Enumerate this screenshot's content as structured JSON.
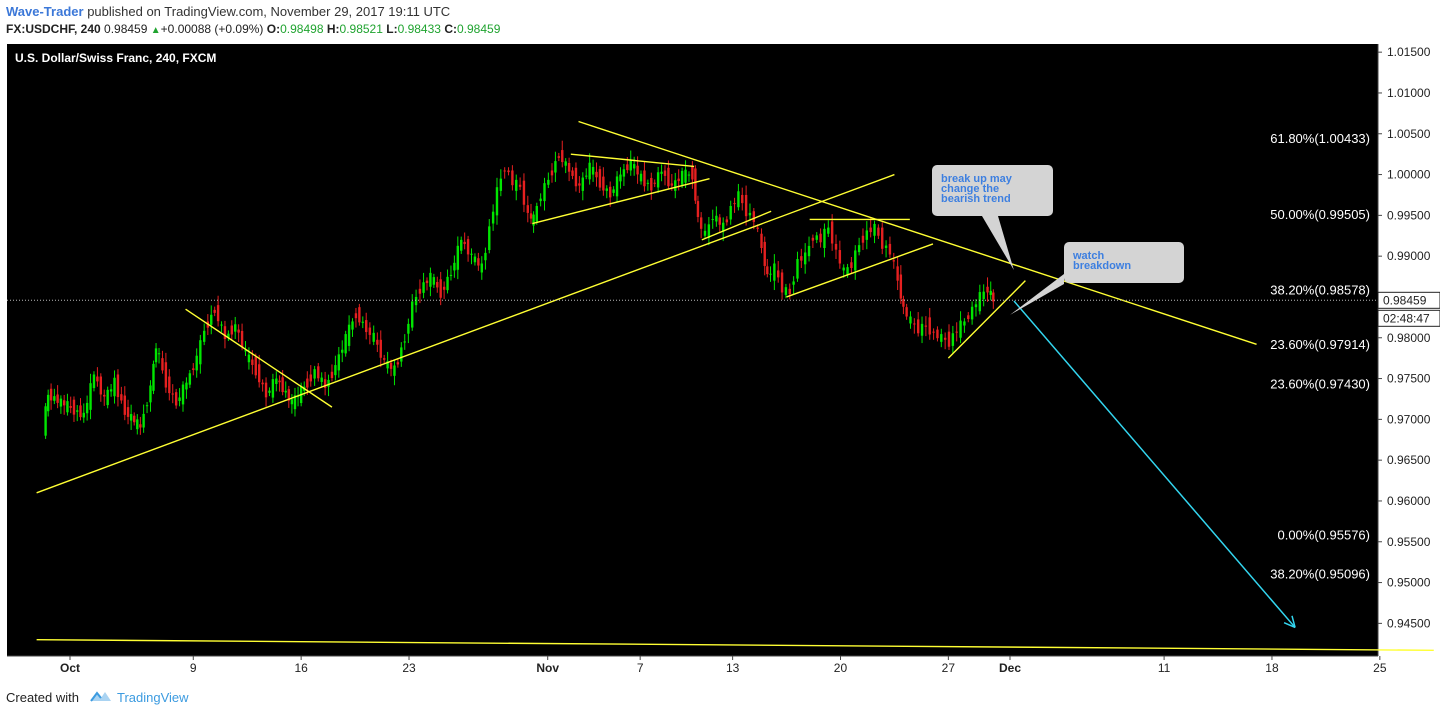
{
  "header": {
    "author": "Wave-Trader",
    "published_text": "published on TradingView.com, November 29, 2017 19:11 UTC",
    "symbol": "FX:USDCHF, 240",
    "last": "0.98459",
    "change": "+0.00088 (+0.09%)",
    "o_label": "O:",
    "o_value": "0.98498",
    "h_label": "H:",
    "h_value": "0.98521",
    "l_label": "L:",
    "l_value": "0.98433",
    "c_label": "C:",
    "c_value": "0.98459"
  },
  "footer": {
    "created_with": "Created with",
    "brand": "TradingView"
  },
  "colors": {
    "background": "#000000",
    "up": "#00e600",
    "down": "#e62020",
    "trendline": "#ffff33",
    "arrow": "#33d6f0",
    "callout": "#d4d4d4",
    "callout_text": "#3d7fe0"
  },
  "chart_data": {
    "type": "candlestick",
    "title": "U.S. Dollar/Swiss Franc, 240, FXCM",
    "ylim": [
      0.941,
      1.016
    ],
    "y_ticks": [
      "1.01500",
      "1.01000",
      "1.00500",
      "1.00000",
      "0.99500",
      "0.99000",
      "0.98500",
      "0.98000",
      "0.97500",
      "0.97000",
      "0.96500",
      "0.96000",
      "0.95500",
      "0.95000",
      "0.94500"
    ],
    "x_ticks": [
      "Oct",
      "9",
      "16",
      "23",
      "Nov",
      "7",
      "13",
      "20",
      "27",
      "Dec",
      "11",
      "18",
      "25"
    ],
    "x_tick_dates": [
      "2017-10-01",
      "2017-10-09",
      "2017-10-16",
      "2017-10-23",
      "2017-11-01",
      "2017-11-07",
      "2017-11-13",
      "2017-11-20",
      "2017-11-27",
      "2017-12-01",
      "2017-12-11",
      "2017-12-18",
      "2017-12-25"
    ],
    "last_price": "0.98459",
    "last_price_value": 0.98459,
    "countdown": "02:48:47",
    "fib_levels": [
      {
        "label": "61.80%(1.00433)",
        "value": 1.00433
      },
      {
        "label": "50.00%(0.99505)",
        "value": 0.99505
      },
      {
        "label": "38.20%(0.98578)",
        "value": 0.98578
      },
      {
        "label": "23.60%(0.97914)",
        "value": 0.97914
      },
      {
        "label": "23.60%(0.97430)",
        "value": 0.9743
      },
      {
        "label": "0.00%(0.95576)",
        "value": 0.95576
      },
      {
        "label": "38.20%(0.95096)",
        "value": 0.95096
      }
    ],
    "price_path": [
      [
        "2017-09-29 08:00",
        0.969
      ],
      [
        "2017-09-29 16:00",
        0.973
      ],
      [
        "2017-10-02 00:00",
        0.9705
      ],
      [
        "2017-10-02 16:00",
        0.9755
      ],
      [
        "2017-10-03 08:00",
        0.9725
      ],
      [
        "2017-10-04 00:00",
        0.9745
      ],
      [
        "2017-10-04 16:00",
        0.971
      ],
      [
        "2017-10-05 16:00",
        0.969
      ],
      [
        "2017-10-06 08:00",
        0.974
      ],
      [
        "2017-10-06 16:00",
        0.979
      ],
      [
        "2017-10-07 08:00",
        0.9745
      ],
      [
        "2017-10-08 00:00",
        0.972
      ],
      [
        "2017-10-08 16:00",
        0.9745
      ],
      [
        "2017-10-09 08:00",
        0.9775
      ],
      [
        "2017-10-09 20:00",
        0.981
      ],
      [
        "2017-10-10 12:00",
        0.9835
      ],
      [
        "2017-10-11 04:00",
        0.98
      ],
      [
        "2017-10-11 20:00",
        0.9815
      ],
      [
        "2017-10-12 12:00",
        0.978
      ],
      [
        "2017-10-13 04:00",
        0.976
      ],
      [
        "2017-10-13 20:00",
        0.973
      ],
      [
        "2017-10-14 12:00",
        0.975
      ],
      [
        "2017-10-15 12:00",
        0.972
      ],
      [
        "2017-10-16 12:00",
        0.9745
      ],
      [
        "2017-10-17 00:00",
        0.976
      ],
      [
        "2017-10-17 16:00",
        0.974
      ],
      [
        "2017-10-18 08:00",
        0.9765
      ],
      [
        "2017-10-19 00:00",
        0.98
      ],
      [
        "2017-10-19 16:00",
        0.983
      ],
      [
        "2017-10-20 08:00",
        0.981
      ],
      [
        "2017-10-20 20:00",
        0.98
      ],
      [
        "2017-10-21 12:00",
        0.977
      ],
      [
        "2017-10-22 04:00",
        0.976
      ],
      [
        "2017-10-22 20:00",
        0.98
      ],
      [
        "2017-10-23 08:00",
        0.984
      ],
      [
        "2017-10-23 20:00",
        0.986
      ],
      [
        "2017-10-24 12:00",
        0.9875
      ],
      [
        "2017-10-25 04:00",
        0.9855
      ],
      [
        "2017-10-25 20:00",
        0.988
      ],
      [
        "2017-10-26 12:00",
        0.992
      ],
      [
        "2017-10-27 04:00",
        0.99
      ],
      [
        "2017-10-27 20:00",
        0.9885
      ],
      [
        "2017-10-28 08:00",
        0.9935
      ],
      [
        "2017-10-28 20:00",
        0.998
      ],
      [
        "2017-10-29 08:00",
        1.001
      ],
      [
        "2017-10-29 20:00",
        0.999
      ],
      [
        "2017-10-30 08:00",
        0.9985
      ],
      [
        "2017-10-30 20:00",
        0.995
      ],
      [
        "2017-10-31 04:00",
        0.9945
      ],
      [
        "2017-10-31 16:00",
        0.9975
      ],
      [
        "2017-11-01 04:00",
        0.9995
      ],
      [
        "2017-11-01 20:00",
        1.0025
      ],
      [
        "2017-11-02 12:00",
        1.0005
      ],
      [
        "2017-11-03 04:00",
        0.9985
      ],
      [
        "2017-11-03 20:00",
        1.001
      ],
      [
        "2017-11-04 12:00",
        0.999
      ],
      [
        "2017-11-05 04:00",
        0.9975
      ],
      [
        "2017-11-05 20:00",
        1.0
      ],
      [
        "2017-11-06 12:00",
        1.0015
      ],
      [
        "2017-11-07 04:00",
        0.9995
      ],
      [
        "2017-11-07 20:00",
        0.9985
      ],
      [
        "2017-11-08 12:00",
        1.0005
      ],
      [
        "2017-11-09 04:00",
        0.9985
      ],
      [
        "2017-11-09 20:00",
        1.0
      ],
      [
        "2017-11-10 12:00",
        1.0
      ],
      [
        "2017-11-10 20:00",
        0.9945
      ],
      [
        "2017-11-11 08:00",
        0.9925
      ],
      [
        "2017-11-11 20:00",
        0.995
      ],
      [
        "2017-11-12 12:00",
        0.9935
      ],
      [
        "2017-11-13 00:00",
        0.996
      ],
      [
        "2017-11-13 12:00",
        0.9975
      ],
      [
        "2017-11-14 00:00",
        0.9955
      ],
      [
        "2017-11-14 12:00",
        0.9945
      ],
      [
        "2017-11-15 00:00",
        0.991
      ],
      [
        "2017-11-15 08:00",
        0.9875
      ],
      [
        "2017-11-15 20:00",
        0.9885
      ],
      [
        "2017-11-16 08:00",
        0.986
      ],
      [
        "2017-11-16 20:00",
        0.9855
      ],
      [
        "2017-11-17 08:00",
        0.9895
      ],
      [
        "2017-11-17 20:00",
        0.99
      ],
      [
        "2017-11-18 08:00",
        0.9925
      ],
      [
        "2017-11-18 20:00",
        0.992
      ],
      [
        "2017-11-19 08:00",
        0.9935
      ],
      [
        "2017-11-19 20:00",
        0.9905
      ],
      [
        "2017-11-20 08:00",
        0.988
      ],
      [
        "2017-11-20 20:00",
        0.989
      ],
      [
        "2017-11-21 08:00",
        0.9915
      ],
      [
        "2017-11-21 20:00",
        0.993
      ],
      [
        "2017-11-22 08:00",
        0.9935
      ],
      [
        "2017-11-22 20:00",
        0.9915
      ],
      [
        "2017-11-23 08:00",
        0.9905
      ],
      [
        "2017-11-23 20:00",
        0.987
      ],
      [
        "2017-11-24 04:00",
        0.9835
      ],
      [
        "2017-11-24 16:00",
        0.982
      ],
      [
        "2017-11-25 04:00",
        0.981
      ],
      [
        "2017-11-25 16:00",
        0.9815
      ],
      [
        "2017-11-26 04:00",
        0.9805
      ],
      [
        "2017-11-26 16:00",
        0.98
      ],
      [
        "2017-11-27 04:00",
        0.9795
      ],
      [
        "2017-11-27 16:00",
        0.981
      ],
      [
        "2017-11-28 04:00",
        0.982
      ],
      [
        "2017-11-28 16:00",
        0.9835
      ],
      [
        "2017-11-29 04:00",
        0.985
      ],
      [
        "2017-11-29 16:00",
        0.986
      ],
      [
        "2017-11-30 00:00",
        0.98459
      ]
    ],
    "trendlines": [
      {
        "name": "rising-support",
        "points": [
          [
            "2017-09-28 20:00",
            0.961
          ],
          [
            "2017-11-23 12:00",
            1.0
          ]
        ]
      },
      {
        "name": "descending-resistance",
        "points": [
          [
            "2017-11-03 00:00",
            1.0065
          ],
          [
            "2017-12-17 00:00",
            0.9792
          ]
        ]
      },
      {
        "name": "october-decline",
        "points": [
          [
            "2017-10-08 12:00",
            0.9835
          ],
          [
            "2017-10-18 00:00",
            0.9715
          ]
        ]
      },
      {
        "name": "nov-triangle-upper",
        "points": [
          [
            "2017-11-02 12:00",
            1.0025
          ],
          [
            "2017-11-10 12:00",
            1.001
          ]
        ]
      },
      {
        "name": "nov-triangle-lower",
        "points": [
          [
            "2017-10-31 00:00",
            0.994
          ],
          [
            "2017-11-11 12:00",
            0.9995
          ]
        ]
      },
      {
        "name": "flag-small",
        "points": [
          [
            "2017-11-11 00:00",
            0.992
          ],
          [
            "2017-11-15 12:00",
            0.9955
          ]
        ]
      },
      {
        "name": "flag-top",
        "points": [
          [
            "2017-11-18 00:00",
            0.9945
          ],
          [
            "2017-11-24 12:00",
            0.9945
          ]
        ]
      },
      {
        "name": "flag-bottom",
        "points": [
          [
            "2017-11-16 12:00",
            0.985
          ],
          [
            "2017-11-26 00:00",
            0.9915
          ]
        ]
      },
      {
        "name": "rising-wedge",
        "points": [
          [
            "2017-11-27 00:00",
            0.9775
          ],
          [
            "2017-12-02 00:00",
            0.987
          ]
        ]
      },
      {
        "name": "bottom-flat",
        "points": [
          [
            "2017-09-28 20:00",
            0.943
          ],
          [
            "2017-12-28 12:00",
            0.9417
          ]
        ]
      }
    ],
    "arrow": {
      "from": [
        "2017-12-01 00:00",
        0.9845
      ],
      "to": [
        "2017-12-19 12:00",
        0.9445
      ]
    },
    "annotations": [
      {
        "text_lines": [
          "break up may",
          "change the",
          "bearish trend"
        ],
        "anchor": [
          "2017-12-01 06:00",
          0.9883
        ]
      },
      {
        "text_lines": [
          "watch",
          "breakdown"
        ],
        "anchor": [
          "2017-12-01 00:00",
          0.9828
        ]
      }
    ]
  }
}
